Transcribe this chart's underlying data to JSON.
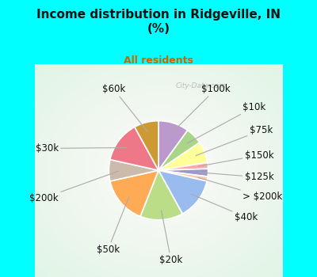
{
  "title": "Income distribution in Ridgeville, IN\n(%)",
  "subtitle": "All residents",
  "title_color": "#111111",
  "subtitle_color": "#cc6600",
  "background_color": "#00ffff",
  "chart_bg_color": "#e0f5ee",
  "labels_order": [
    "$100k",
    "$10k",
    "$75k",
    "$150k",
    "$125k",
    "> $200k",
    "$40k",
    "$20k",
    "$50k",
    "$200k",
    "$30k",
    "$60k"
  ],
  "values": [
    10.0,
    5.5,
    7.0,
    2.0,
    2.5,
    1.5,
    13.5,
    14.0,
    15.5,
    7.0,
    13.5,
    8.0
  ],
  "colors": [
    "#bb99cc",
    "#aad488",
    "#ffff99",
    "#ffaaaa",
    "#9999cc",
    "#ffccaa",
    "#99bbee",
    "#bbdd88",
    "#ffaa55",
    "#ccbbaa",
    "#ee7788",
    "#cc9933"
  ],
  "wedge_edge_color": "#ffffff",
  "label_color": "#111111",
  "label_fontsize": 8.5,
  "watermark": "City-Data.com"
}
